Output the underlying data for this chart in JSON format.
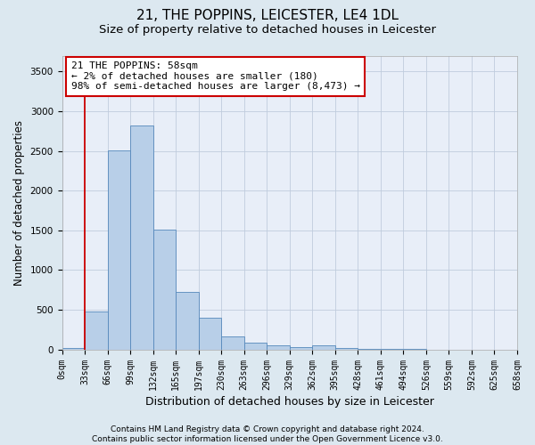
{
  "title": "21, THE POPPINS, LEICESTER, LE4 1DL",
  "subtitle": "Size of property relative to detached houses in Leicester",
  "xlabel": "Distribution of detached houses by size in Leicester",
  "ylabel": "Number of detached properties",
  "bar_values": [
    20,
    480,
    2510,
    2820,
    1510,
    720,
    400,
    160,
    90,
    55,
    30,
    50,
    15,
    5,
    2,
    1,
    0,
    0,
    0,
    0
  ],
  "bin_labels": [
    "0sqm",
    "33sqm",
    "66sqm",
    "99sqm",
    "132sqm",
    "165sqm",
    "197sqm",
    "230sqm",
    "263sqm",
    "296sqm",
    "329sqm",
    "362sqm",
    "395sqm",
    "428sqm",
    "461sqm",
    "494sqm",
    "526sqm",
    "559sqm",
    "592sqm",
    "625sqm",
    "658sqm"
  ],
  "bar_color": "#b8cfe8",
  "bar_edge_color": "#5588bb",
  "property_line_x": 1,
  "property_line_color": "#cc0000",
  "annotation_text": "21 THE POPPINS: 58sqm\n← 2% of detached houses are smaller (180)\n98% of semi-detached houses are larger (8,473) →",
  "annotation_box_color": "#cc0000",
  "ylim": [
    0,
    3700
  ],
  "yticks": [
    0,
    500,
    1000,
    1500,
    2000,
    2500,
    3000,
    3500
  ],
  "footer_text": "Contains HM Land Registry data © Crown copyright and database right 2024.\nContains public sector information licensed under the Open Government Licence v3.0.",
  "bg_color": "#dce8f0",
  "plot_bg_color": "#e8eef8",
  "title_fontsize": 11,
  "subtitle_fontsize": 9.5,
  "xlabel_fontsize": 9,
  "ylabel_fontsize": 8.5,
  "tick_fontsize": 7,
  "annotation_fontsize": 8,
  "footer_fontsize": 6.5
}
